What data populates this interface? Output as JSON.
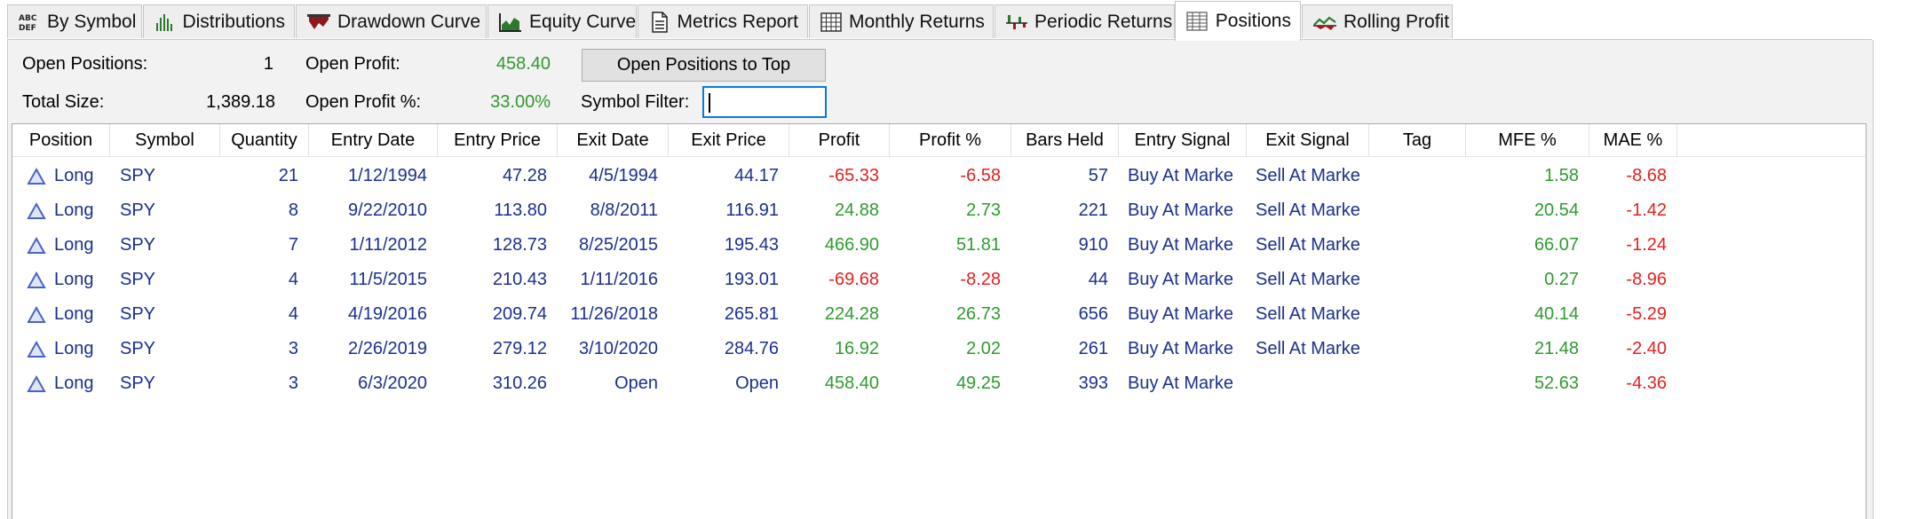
{
  "tabs": [
    {
      "label": "By Symbol",
      "icon": "abc-def-icon"
    },
    {
      "label": "Distributions",
      "icon": "histogram-icon"
    },
    {
      "label": "Drawdown Curve",
      "icon": "drawdown-chart-icon"
    },
    {
      "label": "Equity Curve",
      "icon": "equity-chart-icon"
    },
    {
      "label": "Metrics Report",
      "icon": "document-icon"
    },
    {
      "label": "Monthly Returns",
      "icon": "table-grid-icon"
    },
    {
      "label": "Periodic Returns",
      "icon": "periodic-bars-icon"
    },
    {
      "label": "Positions",
      "icon": "list-table-icon",
      "active": true
    },
    {
      "label": "Rolling Profit",
      "icon": "rolling-chart-icon"
    }
  ],
  "summary": {
    "open_positions_label": "Open Positions:",
    "open_positions_value": "1",
    "total_size_label": "Total Size:",
    "total_size_value": "1,389.18",
    "open_profit_label": "Open Profit:",
    "open_profit_value": "458.40",
    "open_profit_pct_label": "Open Profit %:",
    "open_profit_pct_value": "33.00%",
    "button_label": "Open Positions to Top",
    "symbol_filter_label": "Symbol Filter:",
    "symbol_filter_value": ""
  },
  "columns": [
    "Position",
    "Symbol",
    "Quantity",
    "Entry Date",
    "Entry Price",
    "Exit Date",
    "Exit Price",
    "Profit",
    "Profit %",
    "Bars Held",
    "Entry Signal",
    "Exit Signal",
    "Tag",
    "MFE %",
    "MAE %"
  ],
  "rows": [
    {
      "position": "Long",
      "symbol": "SPY",
      "quantity": "21",
      "entry_date": "1/12/1994",
      "entry_price": "47.28",
      "exit_date": "4/5/1994",
      "exit_price": "44.17",
      "profit": "-65.33",
      "profit_pct": "-6.58",
      "bars_held": "57",
      "entry_signal": "Buy At Marke",
      "exit_signal": "Sell At Marke",
      "tag": "",
      "mfe": "1.58",
      "mae": "-8.68"
    },
    {
      "position": "Long",
      "symbol": "SPY",
      "quantity": "8",
      "entry_date": "9/22/2010",
      "entry_price": "113.80",
      "exit_date": "8/8/2011",
      "exit_price": "116.91",
      "profit": "24.88",
      "profit_pct": "2.73",
      "bars_held": "221",
      "entry_signal": "Buy At Marke",
      "exit_signal": "Sell At Marke",
      "tag": "",
      "mfe": "20.54",
      "mae": "-1.42"
    },
    {
      "position": "Long",
      "symbol": "SPY",
      "quantity": "7",
      "entry_date": "1/11/2012",
      "entry_price": "128.73",
      "exit_date": "8/25/2015",
      "exit_price": "195.43",
      "profit": "466.90",
      "profit_pct": "51.81",
      "bars_held": "910",
      "entry_signal": "Buy At Marke",
      "exit_signal": "Sell At Marke",
      "tag": "",
      "mfe": "66.07",
      "mae": "-1.24"
    },
    {
      "position": "Long",
      "symbol": "SPY",
      "quantity": "4",
      "entry_date": "11/5/2015",
      "entry_price": "210.43",
      "exit_date": "1/11/2016",
      "exit_price": "193.01",
      "profit": "-69.68",
      "profit_pct": "-8.28",
      "bars_held": "44",
      "entry_signal": "Buy At Marke",
      "exit_signal": "Sell At Marke",
      "tag": "",
      "mfe": "0.27",
      "mae": "-8.96"
    },
    {
      "position": "Long",
      "symbol": "SPY",
      "quantity": "4",
      "entry_date": "4/19/2016",
      "entry_price": "209.74",
      "exit_date": "11/26/2018",
      "exit_price": "265.81",
      "profit": "224.28",
      "profit_pct": "26.73",
      "bars_held": "656",
      "entry_signal": "Buy At Marke",
      "exit_signal": "Sell At Marke",
      "tag": "",
      "mfe": "40.14",
      "mae": "-5.29"
    },
    {
      "position": "Long",
      "symbol": "SPY",
      "quantity": "3",
      "entry_date": "2/26/2019",
      "entry_price": "279.12",
      "exit_date": "3/10/2020",
      "exit_price": "284.76",
      "profit": "16.92",
      "profit_pct": "2.02",
      "bars_held": "261",
      "entry_signal": "Buy At Marke",
      "exit_signal": "Sell At Marke",
      "tag": "",
      "mfe": "21.48",
      "mae": "-2.40"
    },
    {
      "position": "Long",
      "symbol": "SPY",
      "quantity": "3",
      "entry_date": "6/3/2020",
      "entry_price": "310.26",
      "exit_date": "Open",
      "exit_price": "Open",
      "profit": "458.40",
      "profit_pct": "49.25",
      "bars_held": "393",
      "entry_signal": "Buy At Marke",
      "exit_signal": "",
      "tag": "",
      "mfe": "52.63",
      "mae": "-4.36"
    }
  ],
  "colors": {
    "positive": "#2f9a2f",
    "negative": "#e41f1f",
    "text_blue": "#1c2f8f",
    "long_icon": "#4a63c8"
  }
}
